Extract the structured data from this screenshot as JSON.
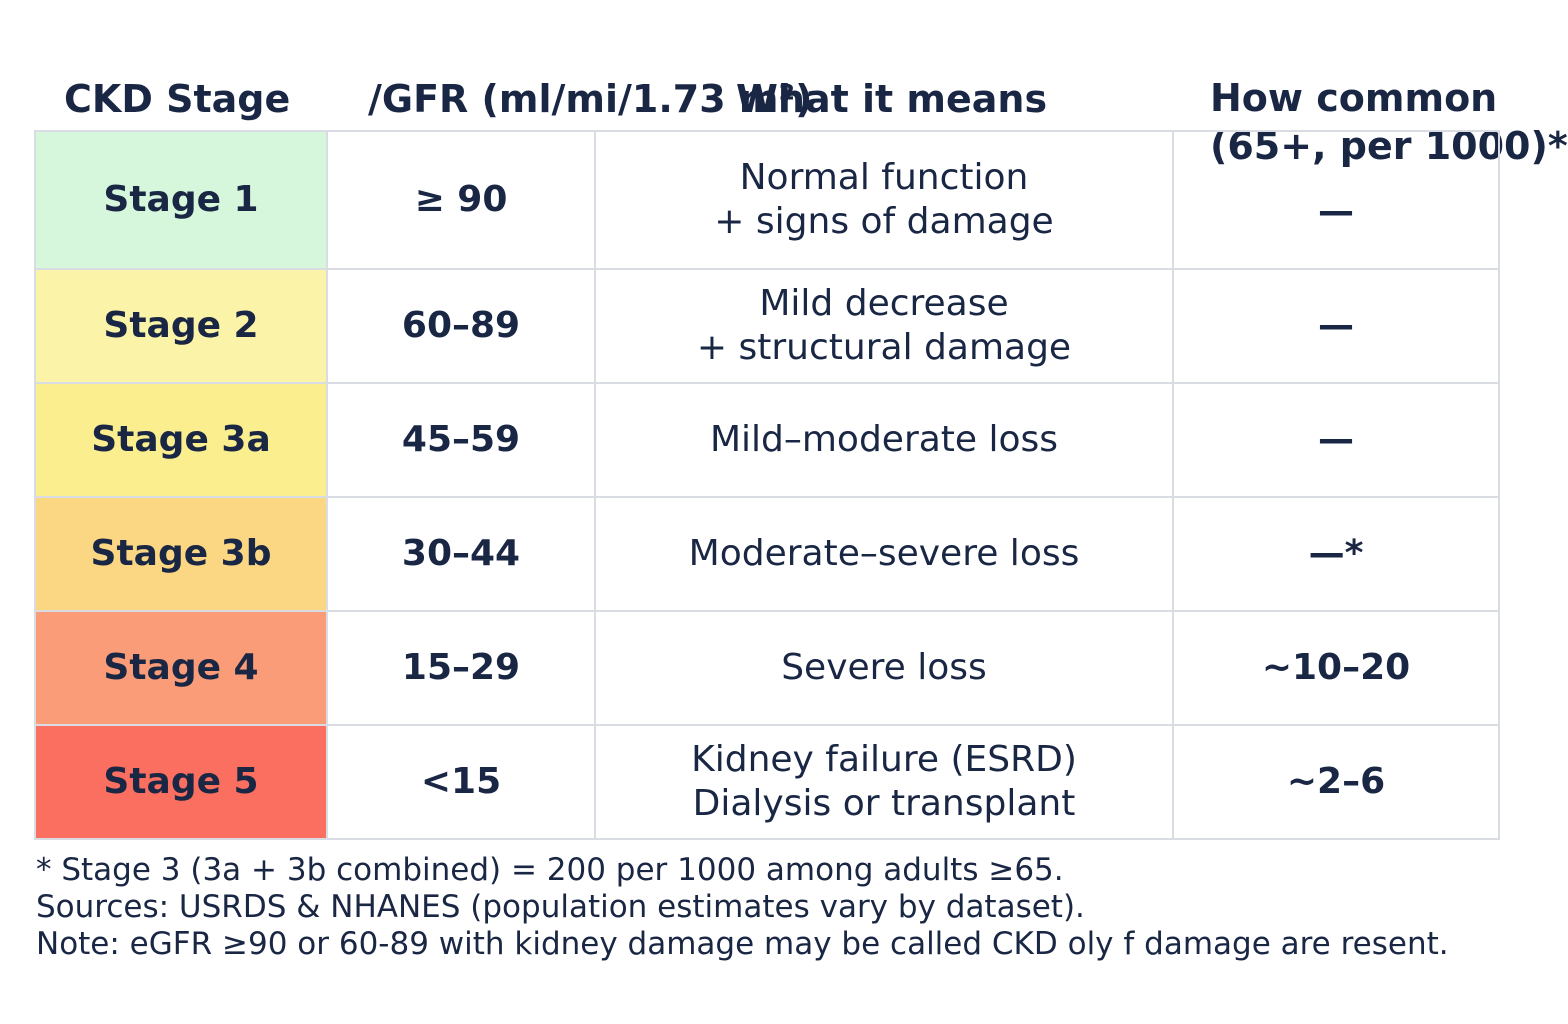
{
  "chart_data": {
    "type": "table",
    "headers": {
      "stage": "CKD Stage",
      "gfr": "/GFR (ml/mi/1.73 m²)",
      "means": "What it means",
      "common_line1": "How common",
      "common_line2": "(65+, per 1000)*"
    },
    "rows": [
      {
        "stage": "Stage 1",
        "gfr": "≥ 90",
        "means": [
          "Normal function",
          "+ signs of damage"
        ],
        "common": "—",
        "color": "#d6f7dc"
      },
      {
        "stage": "Stage 2",
        "gfr": "60–89",
        "means": [
          "Mild decrease",
          "+ structural damage"
        ],
        "common": "—",
        "color": "#fbf3a8"
      },
      {
        "stage": "Stage 3a",
        "gfr": "45–59",
        "means": [
          "Mild–moderate loss"
        ],
        "common": "—",
        "color": "#fbee8e"
      },
      {
        "stage": "Stage 3b",
        "gfr": "30–44",
        "means": [
          "Moderate–severe loss"
        ],
        "common": "—*",
        "color": "#fbd784"
      },
      {
        "stage": "Stage 4",
        "gfr": "15–29",
        "means": [
          "Severe loss"
        ],
        "common": "~10–20",
        "color": "#fb9c78"
      },
      {
        "stage": "Stage 5",
        "gfr": "<15",
        "means": [
          "Kidney failure (ESRD)",
          "Dialysis or transplant"
        ],
        "common": "~2–6",
        "color": "#fb6f60"
      }
    ]
  },
  "footnotes": [
    "* Stage 3 (3a + 3b combined) = 200 per 1000 among adults ≥65.",
    "Sources: USRDS & NHANES (population estimates vary by dataset).",
    "Note: eGFR ≥90 or 60-89 with kidney damage may be called CKD oly f damage are resent."
  ],
  "colors": {
    "text": "#1a2744",
    "border": "#d9dde3"
  }
}
